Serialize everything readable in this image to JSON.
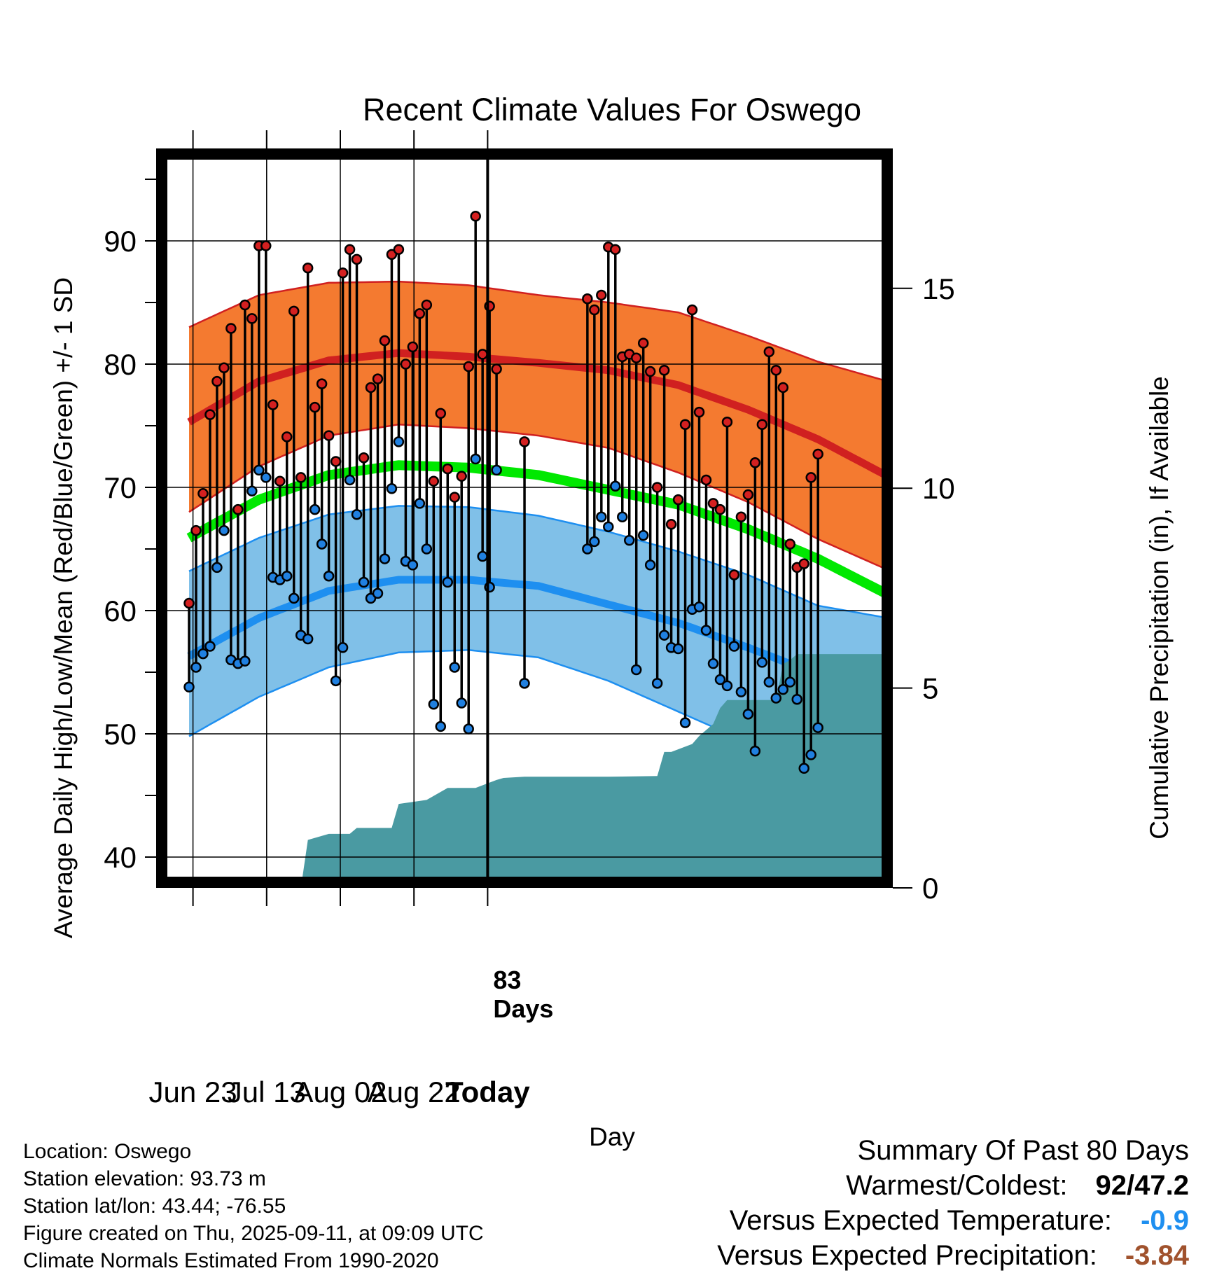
{
  "chart_data": {
    "type": "line",
    "title": "Recent Climate Values For Oswego",
    "xlabel": "Day",
    "ylabel": "Average Daily High/Low/Mean (Red/Blue/Green) +/- 1 SD",
    "y2label": "Cumulative Precipitation (in), If Available",
    "ylim": [
      37.5,
      97.5
    ],
    "y2lim": [
      0,
      18.5
    ],
    "xlim": [
      -11,
      9
    ],
    "x_ticks": [
      {
        "x": -10,
        "label": "Jun 23"
      },
      {
        "x": -8,
        "label": "Jul 13"
      },
      {
        "x": -6,
        "label": "Aug 02"
      },
      {
        "x": -4,
        "label": "Aug 22"
      },
      {
        "x": -2,
        "label": "Today"
      }
    ],
    "y_ticks": [
      40,
      50,
      60,
      70,
      80,
      90
    ],
    "y2_ticks": [
      0,
      5,
      10,
      15
    ],
    "grid": true,
    "today_marker": {
      "x": -2,
      "label_line1": "83",
      "label_line2": "Days"
    },
    "colors": {
      "high_band": "#f47a30",
      "high_mean": "#d02020",
      "low_band": "#80c0e8",
      "low_mean": "#1e8ff0",
      "mean": "#00e800",
      "precip": "#4a9aa2",
      "high_dot": "#d42020",
      "low_dot": "#2080e0"
    },
    "normals": {
      "x": [
        0,
        10,
        20,
        30,
        40,
        50,
        60,
        70,
        80,
        90,
        100
      ],
      "high_mean": [
        75.3,
        78.6,
        80.3,
        80.9,
        80.6,
        80.1,
        79.5,
        78.3,
        76.3,
        73.9,
        70.9
      ],
      "high_upper": [
        83.0,
        85.6,
        86.6,
        86.7,
        86.4,
        85.6,
        85.0,
        84.2,
        82.3,
        80.2,
        78.6
      ],
      "high_lower": [
        68.0,
        71.7,
        74.2,
        75.1,
        74.8,
        74.2,
        73.2,
        71.2,
        68.8,
        65.8,
        63.3
      ],
      "low_mean": [
        56.3,
        59.4,
        61.6,
        62.5,
        62.5,
        62.0,
        60.5,
        59.0,
        57.0,
        54.8,
        51.9
      ],
      "low_upper": [
        63.2,
        65.9,
        67.8,
        68.5,
        68.4,
        67.7,
        66.4,
        64.8,
        62.9,
        60.4,
        59.4
      ],
      "low_lower": [
        49.8,
        53.0,
        55.4,
        56.6,
        56.8,
        56.2,
        54.3,
        51.8,
        49.3,
        46.8,
        44.3
      ],
      "mean": [
        65.9,
        69.0,
        71.0,
        71.8,
        71.6,
        71.0,
        69.8,
        68.6,
        66.6,
        64.2,
        61.3
      ]
    },
    "observations": {
      "x": [
        0,
        1,
        2,
        3,
        4,
        5,
        6,
        7,
        8,
        9,
        10,
        11,
        12,
        13,
        14,
        15,
        16,
        17,
        18,
        19,
        20,
        21,
        22,
        23,
        24,
        25,
        26,
        27,
        28,
        29,
        30,
        31,
        32,
        33,
        34,
        35,
        36,
        37,
        38,
        39,
        40,
        41,
        42,
        43,
        44,
        48,
        57,
        58,
        59,
        60,
        61,
        62,
        63,
        64,
        65,
        66,
        67,
        68,
        69,
        70,
        71,
        72,
        73,
        74,
        75,
        76,
        77,
        78,
        79,
        80,
        81,
        82,
        83,
        84,
        85,
        86,
        87,
        88,
        89,
        90
      ],
      "high": [
        60.6,
        66.5,
        69.5,
        75.9,
        78.6,
        79.7,
        82.9,
        68.2,
        84.8,
        83.7,
        89.6,
        89.6,
        76.7,
        70.5,
        74.1,
        84.3,
        70.8,
        87.8,
        76.5,
        78.4,
        74.2,
        72.1,
        87.4,
        89.3,
        88.5,
        72.4,
        78.1,
        78.8,
        81.9,
        88.9,
        89.3,
        80.0,
        81.4,
        84.1,
        84.8,
        70.5,
        76.0,
        71.5,
        69.2,
        70.9,
        79.8,
        92.0,
        80.8,
        84.7,
        79.6,
        73.7,
        85.3,
        84.4,
        85.6,
        89.5,
        89.3,
        80.6,
        80.8,
        80.5,
        81.7,
        79.4,
        70.0,
        79.5,
        67.0,
        69.0,
        75.1,
        84.4,
        76.1,
        70.6,
        68.7,
        68.2,
        75.3,
        62.9,
        67.6,
        69.4,
        72.0,
        75.1,
        81.0,
        79.5,
        78.1,
        65.4,
        63.5,
        63.8,
        70.8,
        72.7
      ],
      "low": [
        53.8,
        55.4,
        56.5,
        57.1,
        63.5,
        66.5,
        56.0,
        55.7,
        55.9,
        69.7,
        71.4,
        70.8,
        62.7,
        62.5,
        62.8,
        61.0,
        58.0,
        57.7,
        68.2,
        65.4,
        62.8,
        54.3,
        57.0,
        70.6,
        67.8,
        62.3,
        61.0,
        61.4,
        64.2,
        69.9,
        73.7,
        64.0,
        63.7,
        68.7,
        65.0,
        52.4,
        50.6,
        62.3,
        55.4,
        52.5,
        50.4,
        72.3,
        64.4,
        61.9,
        71.4,
        54.1,
        65.0,
        65.6,
        67.6,
        66.8,
        70.1,
        67.6,
        65.7,
        55.2,
        66.1,
        63.7,
        54.1,
        58.0,
        57.0,
        56.9,
        50.9,
        60.1,
        60.3,
        58.4,
        55.7,
        54.4,
        53.9,
        57.1,
        53.4,
        51.6,
        48.6,
        55.8,
        54.2,
        52.9,
        53.6,
        54.2,
        52.8,
        47.2,
        48.3,
        50.5
      ]
    },
    "precipitation": {
      "x": [
        0,
        16,
        17,
        20,
        23,
        24,
        26,
        29,
        30,
        34,
        37,
        41,
        44,
        45,
        48,
        50,
        54,
        60,
        67,
        68,
        69,
        72,
        73,
        75,
        76,
        77,
        78,
        80,
        84,
        85,
        86,
        87,
        88,
        90,
        100
      ],
      "cum": [
        0,
        0,
        1.2,
        1.35,
        1.35,
        1.5,
        1.5,
        1.5,
        2.1,
        2.2,
        2.5,
        2.5,
        2.7,
        2.75,
        2.78,
        2.78,
        2.78,
        2.78,
        2.8,
        3.4,
        3.4,
        3.6,
        3.8,
        4.1,
        4.5,
        4.7,
        4.7,
        4.7,
        4.7,
        5.6,
        5.7,
        5.85,
        5.85,
        5.85,
        5.85
      ]
    }
  },
  "info": {
    "location": "Location: Oswego",
    "elevation": "Station elevation: 93.73 m",
    "latlon": "Station lat/lon: 43.44; -76.55",
    "created": "Figure created on Thu, 2025-09-11, at 09:09 UTC",
    "normals": "Climate Normals Estimated From 1990-2020"
  },
  "summary": {
    "title": "Summary Of Past 80 Days",
    "warm_cold_label": "Warmest/Coldest:",
    "warm_cold_high": "92",
    "warm_cold_sep": "/",
    "warm_cold_low": "47.2",
    "temp_label": "Versus Expected Temperature:",
    "temp_value": "-0.9",
    "temp_color": "#1e8ff0",
    "precip_label": "Versus Expected Precipitation:",
    "precip_value": "-3.84",
    "precip_color": "#a0522d"
  }
}
